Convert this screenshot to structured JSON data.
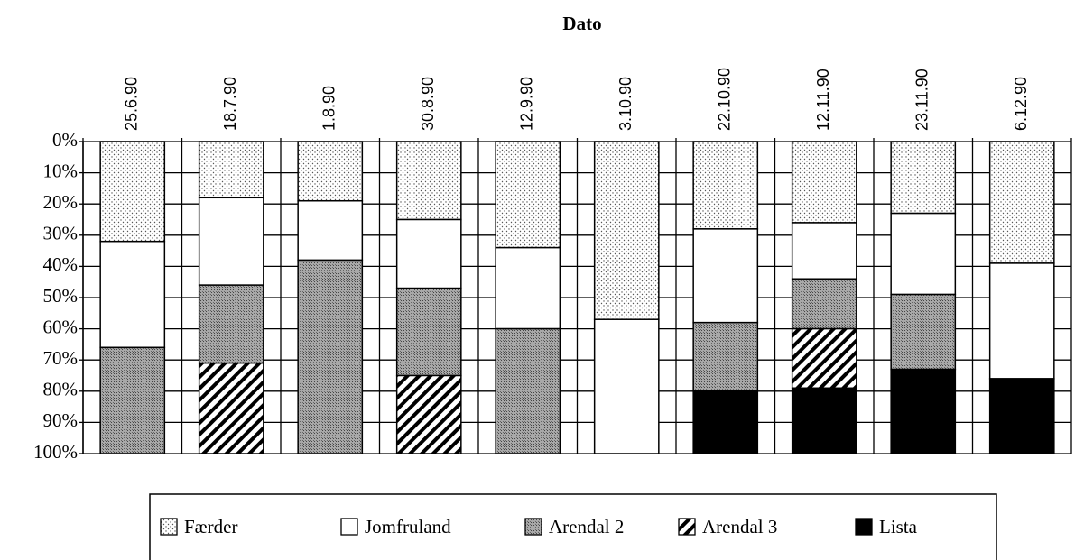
{
  "chart_data": {
    "type": "stacked_bar",
    "x_axis_title": "Dato",
    "categories": [
      "25.6.90",
      "18.7.90",
      "1.8.90",
      "30.8.90",
      "12.9.90",
      "3.10.90",
      "22.10.90",
      "12.11.90",
      "23.11.90",
      "6.12.90"
    ],
    "series": [
      {
        "name": "Færder",
        "color": "#ffffff",
        "pattern": "dots",
        "values": [
          32,
          18,
          19,
          25,
          34,
          57,
          28,
          26,
          23,
          39
        ]
      },
      {
        "name": "Jomfruland",
        "color": "#ffffff",
        "pattern": "none",
        "values": [
          34,
          28,
          19,
          22,
          26,
          43,
          30,
          18,
          26,
          37
        ]
      },
      {
        "name": "Arendal 2",
        "color": "#9a9a9a",
        "pattern": "stipple",
        "values": [
          34,
          25,
          62,
          28,
          40,
          0,
          22,
          16,
          24,
          0
        ]
      },
      {
        "name": "Arendal 3",
        "color": "#ffffff",
        "pattern": "hatch",
        "values": [
          0,
          29,
          0,
          25,
          0,
          0,
          0,
          19,
          0,
          0
        ]
      },
      {
        "name": "Lista",
        "color": "#000000",
        "pattern": "solid",
        "values": [
          0,
          0,
          0,
          0,
          0,
          0,
          20,
          21,
          27,
          24
        ]
      }
    ],
    "ylim": [
      0,
      100
    ],
    "y_reversed": true,
    "yticks": [
      {
        "value": 0,
        "label": "0%"
      },
      {
        "value": 10,
        "label": "10%"
      },
      {
        "value": 20,
        "label": "20%"
      },
      {
        "value": 30,
        "label": "30%"
      },
      {
        "value": 40,
        "label": "40%"
      },
      {
        "value": 50,
        "label": "50%"
      },
      {
        "value": 60,
        "label": "60%"
      },
      {
        "value": 70,
        "label": "70%"
      },
      {
        "value": 80,
        "label": "80%"
      },
      {
        "value": 90,
        "label": "90%"
      },
      {
        "value": 100,
        "label": "100%"
      }
    ],
    "grid": true,
    "legend": "bottom"
  }
}
